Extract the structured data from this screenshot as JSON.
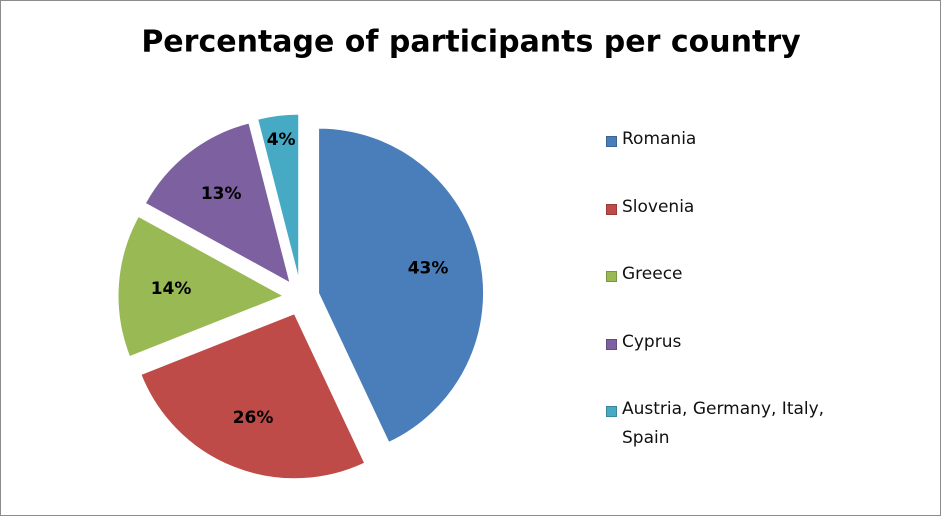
{
  "chart_data": {
    "type": "pie",
    "title": "Percentage of participants per country",
    "categories": [
      "Romania",
      "Slovenia",
      "Greece",
      "Cyprus",
      "Austria, Germany, Italy, Spain"
    ],
    "values": [
      43,
      26,
      14,
      13,
      4
    ],
    "value_labels": [
      "43%",
      "26%",
      "14%",
      "13%",
      "4%"
    ],
    "colors": [
      "#4a7ebb",
      "#be4b48",
      "#98b954",
      "#7d60a0",
      "#46aac5"
    ],
    "legend": "right"
  }
}
